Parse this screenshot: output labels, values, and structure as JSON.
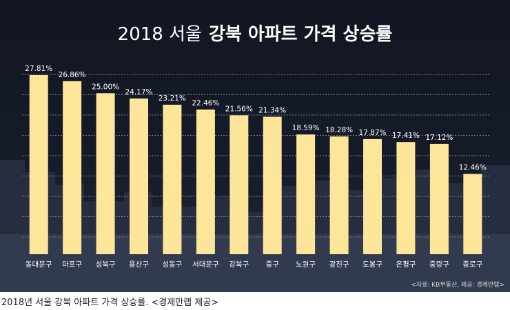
{
  "chart_data": {
    "type": "bar",
    "title_light": "2018 서울",
    "title_bold": "강북 아파트 가격 상승률",
    "categories": [
      "동대문구",
      "마포구",
      "성북구",
      "용산구",
      "성동구",
      "서대문구",
      "강북구",
      "중구",
      "노원구",
      "광진구",
      "도봉구",
      "은평구",
      "중랑구",
      "종로구"
    ],
    "values": [
      27.81,
      26.86,
      25.0,
      24.17,
      23.21,
      22.46,
      21.56,
      21.34,
      18.59,
      18.28,
      17.87,
      17.41,
      17.12,
      12.46
    ],
    "value_labels": [
      "27.81%",
      "26.86%",
      "25.00%",
      "24.17%",
      "23.21%",
      "22.46%",
      "21.56%",
      "21.34%",
      "18.59%",
      "18.28%",
      "17.87%",
      "17.41%",
      "17.12%",
      "12.46%"
    ],
    "unit": "%",
    "ylim": [
      0,
      29.2
    ],
    "grid": true,
    "bar_color": "#fde59a",
    "background_color": "#161b29",
    "source": "<자료: KB부동산, 제공: 경제만랩>"
  },
  "caption": "2018년 서울 강북 아파트 가격 상승률. <경제만랩 제공>"
}
